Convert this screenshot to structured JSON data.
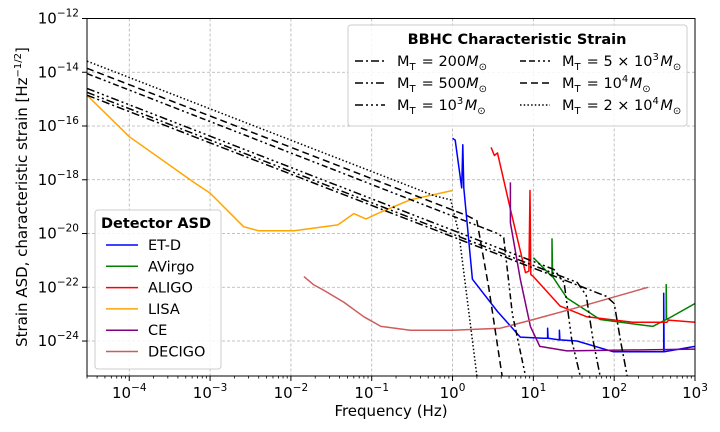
{
  "chart_data": {
    "type": "line",
    "xscale": "log",
    "yscale": "log",
    "xlim": [
      3e-05,
      1000
    ],
    "ylim": [
      5e-26,
      1e-12
    ],
    "grid": true,
    "xlabel": "Frequency (Hz)",
    "ylabel": "Strain ASD, characteristic strain [Hz",
    "ylabel_exp": "−1/2",
    "ylabel_close": "]",
    "xticks": [
      {
        "value": 0.0001,
        "base": "10",
        "exp": "−4"
      },
      {
        "value": 0.001,
        "base": "10",
        "exp": "−3"
      },
      {
        "value": 0.01,
        "base": "10",
        "exp": "−2"
      },
      {
        "value": 0.1,
        "base": "10",
        "exp": "−1"
      },
      {
        "value": 1,
        "base": "10",
        "exp": "0"
      },
      {
        "value": 10,
        "base": "10",
        "exp": "1"
      },
      {
        "value": 100,
        "base": "10",
        "exp": "2"
      },
      {
        "value": 1000,
        "base": "10",
        "exp": "3"
      }
    ],
    "yticks": [
      {
        "value": 1e-12,
        "base": "10",
        "exp": "−12"
      },
      {
        "value": 1e-14,
        "base": "10",
        "exp": "−14"
      },
      {
        "value": 1e-16,
        "base": "10",
        "exp": "−16"
      },
      {
        "value": 1e-18,
        "base": "10",
        "exp": "−18"
      },
      {
        "value": 1e-20,
        "base": "10",
        "exp": "−20"
      },
      {
        "value": 1e-22,
        "base": "10",
        "exp": "−22"
      },
      {
        "value": 1e-24,
        "base": "10",
        "exp": "−24"
      }
    ],
    "bbhc_legend": {
      "title": "BBHC Characteristic Strain",
      "placement": "upper-right",
      "series": [
        {
          "mass": "200",
          "label": [
            {
              "t": "M"
            },
            {
              "t": "T",
              "sub": true
            },
            {
              "t": " = 200"
            },
            {
              "t": "M",
              "it": true
            },
            {
              "t": "⊙",
              "sub": true
            }
          ],
          "style": "dash-dot",
          "points": [
            [
              3e-05,
              1.4e-15
            ],
            [
              80,
              4.6e-23
            ],
            [
              100,
              2.5e-23
            ],
            [
              120,
              1e-24
            ],
            [
              145,
              5e-26
            ]
          ]
        },
        {
          "mass": "500",
          "label": [
            {
              "t": "M"
            },
            {
              "t": "T",
              "sub": true
            },
            {
              "t": " = 500"
            },
            {
              "t": "M",
              "it": true
            },
            {
              "t": "⊙",
              "sub": true
            }
          ],
          "style": "dash-dot-dot",
          "points": [
            [
              3e-05,
              1.8e-15
            ],
            [
              35,
              1.5e-22
            ],
            [
              45,
              5e-23
            ],
            [
              55,
              1e-24
            ],
            [
              67,
              5e-26
            ]
          ]
        },
        {
          "mass": "10^3",
          "label": [
            {
              "t": "M"
            },
            {
              "t": "T",
              "sub": true
            },
            {
              "t": " = 10"
            },
            {
              "t": "3",
              "sup": true
            },
            {
              "t": "M",
              "it": true
            },
            {
              "t": "⊙",
              "sub": true
            }
          ],
          "style": "dash-dot-dot-dot",
          "points": [
            [
              3e-05,
              2.5e-15
            ],
            [
              18,
              4.6e-22
            ],
            [
              24,
              1.5e-22
            ],
            [
              30,
              1e-24
            ],
            [
              38,
              5e-26
            ]
          ]
        },
        {
          "mass": "5x10^3",
          "label": [
            {
              "t": "M"
            },
            {
              "t": "T",
              "sub": true
            },
            {
              "t": " = 5 × 10"
            },
            {
              "t": "3",
              "sup": true
            },
            {
              "t": "M",
              "it": true
            },
            {
              "t": "⊙",
              "sub": true
            }
          ],
          "style": "dash-dash-dot-dot",
          "points": [
            [
              3e-05,
              8.9e-15
            ],
            [
              3.6,
              1e-20
            ],
            [
              4.3,
              7e-21
            ],
            [
              5.5,
              1e-23
            ],
            [
              8,
              5e-26
            ]
          ]
        },
        {
          "mass": "10^4",
          "label": [
            {
              "t": "M"
            },
            {
              "t": "T",
              "sub": true
            },
            {
              "t": " = 10"
            },
            {
              "t": "4",
              "sup": true
            },
            {
              "t": "M",
              "it": true
            },
            {
              "t": "⊙",
              "sub": true
            }
          ],
          "style": "dashed",
          "points": [
            [
              3e-05,
              1.4e-14
            ],
            [
              1.5,
              4.7e-20
            ],
            [
              2.0,
              3e-20
            ],
            [
              2.8,
              1e-22
            ],
            [
              4.1,
              5e-26
            ]
          ]
        },
        {
          "mass": "2x10^4",
          "label": [
            {
              "t": "M"
            },
            {
              "t": "T",
              "sub": true
            },
            {
              "t": " = 2 × 10"
            },
            {
              "t": "4",
              "sup": true
            },
            {
              "t": "M",
              "it": true
            },
            {
              "t": "⊙",
              "sub": true
            }
          ],
          "style": "dotted",
          "points": [
            [
              3e-05,
              2.6e-14
            ],
            [
              0.6,
              2.5e-19
            ],
            [
              0.95,
              1.8e-19
            ],
            [
              1.2,
              1e-20
            ],
            [
              2.0,
              5e-26
            ]
          ]
        }
      ]
    },
    "detector_legend": {
      "title": "Detector ASD",
      "placement": "lower-left",
      "series": [
        {
          "name": "ET-D",
          "color": "#0000ff",
          "points": [
            [
              1,
              3.5e-17
            ],
            [
              1.08,
              3e-17
            ],
            [
              1.3,
              5e-19
            ],
            [
              1.34,
              2e-17
            ],
            [
              1.38,
              5e-19
            ],
            [
              1.76,
              2e-22
            ],
            [
              3.6,
              1.26e-23
            ],
            [
              6.9,
              1.4e-24
            ],
            [
              13.3,
              1.26e-24
            ],
            [
              15,
              1.26e-24
            ],
            [
              15,
              3e-24
            ],
            [
              15.2,
              1.26e-24
            ],
            [
              21,
              1.1e-24
            ],
            [
              21,
              2.5e-24
            ],
            [
              21.3,
              1.1e-24
            ],
            [
              34.6,
              1e-24
            ],
            [
              97,
              4e-25
            ],
            [
              410,
              4e-25
            ],
            [
              410,
              6e-23
            ],
            [
              415,
              4e-25
            ],
            [
              1000,
              6.3e-25
            ]
          ]
        },
        {
          "name": "AVirgo",
          "color": "#008000",
          "points": [
            [
              10,
              1.26e-21
            ],
            [
              17,
              2.5e-22
            ],
            [
              17,
              6.3e-21
            ],
            [
              17.3,
              2.5e-22
            ],
            [
              26,
              4e-23
            ],
            [
              67,
              6.3e-24
            ],
            [
              300,
              3.5e-24
            ],
            [
              440,
              6.3e-24
            ],
            [
              440,
              1.26e-22
            ],
            [
              445,
              6.3e-24
            ],
            [
              1000,
              2.5e-23
            ]
          ]
        },
        {
          "name": "ALIGO",
          "color": "#ff0000",
          "points": [
            [
              3,
              1.6e-17
            ],
            [
              3.3,
              8e-18
            ],
            [
              3.6,
              1e-17
            ],
            [
              5.2,
              8e-20
            ],
            [
              8,
              3.5e-22
            ],
            [
              8.8,
              4e-22
            ],
            [
              9.1,
              4e-19
            ],
            [
              9.3,
              3e-22
            ],
            [
              10,
              2.5e-22
            ],
            [
              21.5,
              2e-23
            ],
            [
              46,
              8e-24
            ],
            [
              170,
              5e-24
            ],
            [
              450,
              5e-24
            ],
            [
              470,
              6e-24
            ],
            [
              1000,
              5e-24
            ]
          ]
        },
        {
          "name": "LISA",
          "color": "#ffa500",
          "points": [
            [
              3e-05,
              1.4e-15
            ],
            [
              0.0001,
              4e-17
            ],
            [
              0.00063,
              8e-19
            ],
            [
              0.001,
              3.2e-19
            ],
            [
              0.0026,
              1.8e-20
            ],
            [
              0.004,
              1.26e-20
            ],
            [
              0.011,
              1.26e-20
            ],
            [
              0.038,
              2.1e-20
            ],
            [
              0.06,
              5.5e-20
            ],
            [
              0.085,
              3.5e-20
            ],
            [
              0.13,
              6.3e-20
            ],
            [
              0.3,
              1.8e-19
            ],
            [
              1,
              4e-19
            ]
          ]
        },
        {
          "name": "CE",
          "color": "#800080",
          "points": [
            [
              5.2,
              8e-19
            ],
            [
              5.2,
              2.5e-20
            ],
            [
              6.9,
              2e-22
            ],
            [
              9.2,
              3.5e-24
            ],
            [
              12,
              6.3e-25
            ],
            [
              26,
              4.3e-25
            ],
            [
              1000,
              5e-25
            ]
          ]
        },
        {
          "name": "DECIGO",
          "color": "#cd5c5c",
          "points": [
            [
              0.0145,
              2.5e-22
            ],
            [
              0.019,
              1.26e-22
            ],
            [
              0.025,
              8e-23
            ],
            [
              0.045,
              2.8e-23
            ],
            [
              0.08,
              8e-24
            ],
            [
              0.13,
              3.5e-24
            ],
            [
              0.3,
              2.5e-24
            ],
            [
              1,
              2.5e-24
            ],
            [
              3.9,
              3e-24
            ],
            [
              10,
              6.3e-24
            ],
            [
              31,
              1.6e-23
            ],
            [
              262,
              1e-22
            ]
          ]
        }
      ]
    }
  }
}
